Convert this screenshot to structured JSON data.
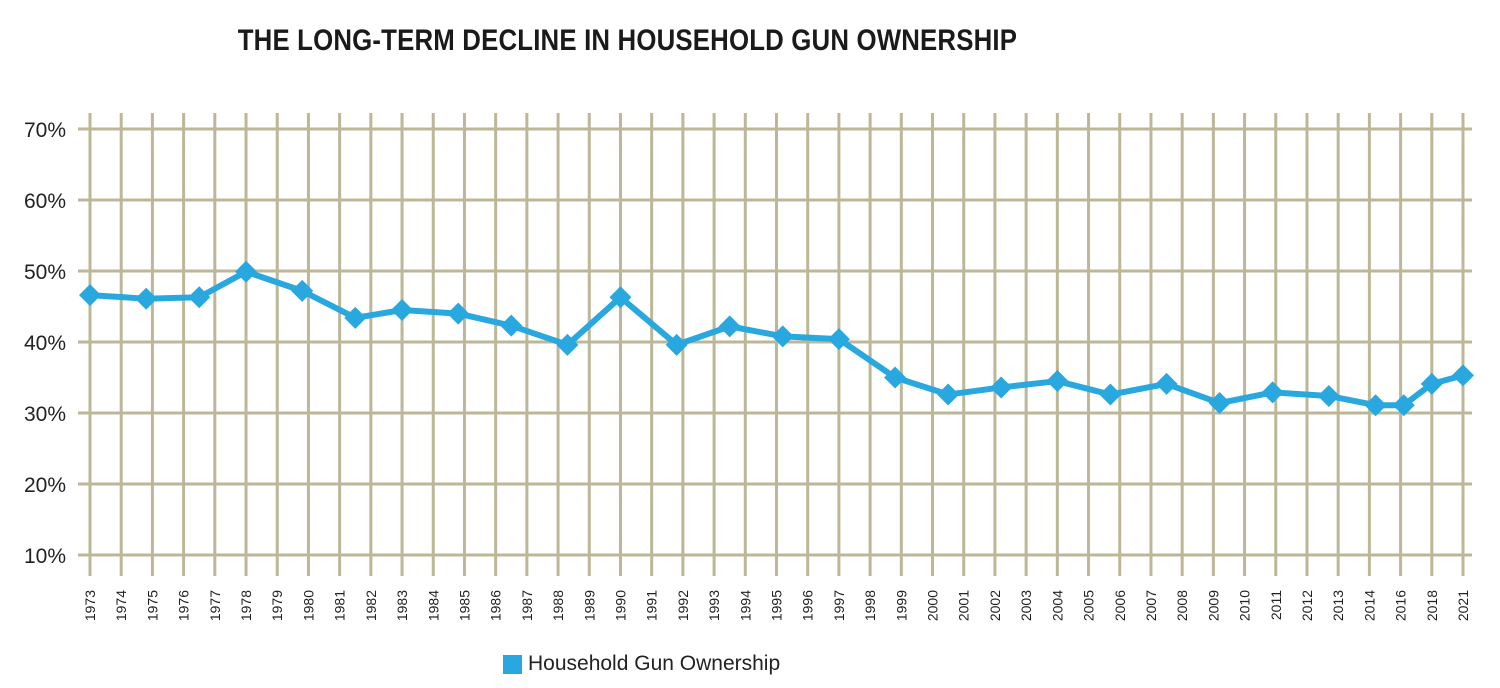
{
  "chart_data": {
    "type": "line",
    "title": "THE LONG-TERM DECLINE IN HOUSEHOLD GUN OWNERSHIP",
    "xlabel": "",
    "ylabel": "",
    "y_ticks": [
      "10%",
      "20%",
      "30%",
      "40%",
      "50%",
      "60%",
      "70%"
    ],
    "ylim": [
      10,
      70
    ],
    "grid": true,
    "legend_position": "bottom-center",
    "categories": [
      "1973",
      "1974",
      "1975",
      "1976",
      "1977",
      "1978",
      "1979",
      "1980",
      "1981",
      "1982",
      "1983",
      "1984",
      "1985",
      "1986",
      "1987",
      "1988",
      "1989",
      "1990",
      "1991",
      "1992",
      "1993",
      "1994",
      "1995",
      "1996",
      "1997",
      "1998",
      "1999",
      "2000",
      "2001",
      "2002",
      "2003",
      "2004",
      "2005",
      "2006",
      "2007",
      "2008",
      "2009",
      "2010",
      "2011",
      "2012",
      "2013",
      "2014",
      "2016",
      "2018",
      "2021"
    ],
    "series": [
      {
        "name": "Household Gun Ownership",
        "x": [
          1973,
          1974.8,
          1976.5,
          1978,
          1979.8,
          1981.5,
          1983,
          1984.8,
          1986.5,
          1988.3,
          1990,
          1991.8,
          1993.5,
          1995.2,
          1997,
          1998.8,
          2000.5,
          2002.2,
          2004,
          2005.7,
          2007.5,
          2009.2,
          2010.9,
          2012.7,
          2014.4,
          2016.2,
          2018,
          2021
        ],
        "values": [
          46.6,
          46.1,
          46.3,
          49.9,
          47.2,
          43.4,
          44.5,
          44.0,
          42.3,
          39.6,
          46.3,
          39.6,
          42.2,
          40.8,
          40.4,
          35.0,
          32.6,
          33.6,
          34.5,
          32.6,
          34.1,
          31.4,
          32.9,
          32.4,
          31.1,
          31.1,
          34.1,
          35.3
        ]
      }
    ]
  },
  "colors": {
    "series": "#29a8df",
    "grid": "#bcb796",
    "text": "#222222"
  }
}
